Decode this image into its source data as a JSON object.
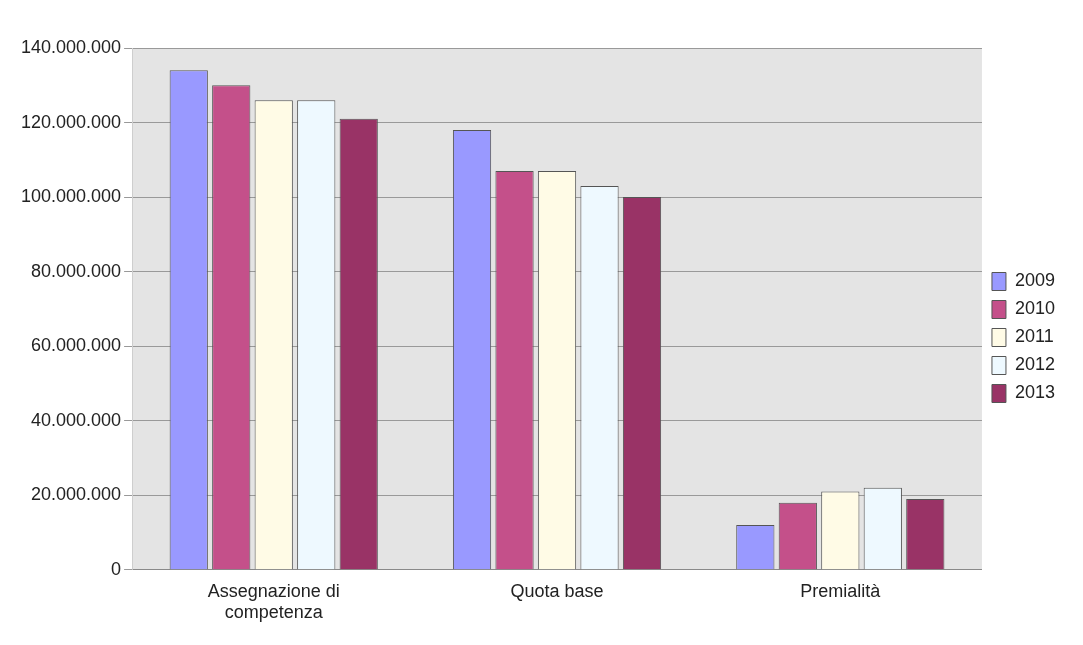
{
  "chart_data": {
    "type": "bar",
    "categories": [
      "Assegnazione di competenza",
      "Quota base",
      "Premialità"
    ],
    "series": [
      {
        "name": "2009",
        "color": "#9999ff",
        "values": [
          134000000,
          118000000,
          12000000
        ]
      },
      {
        "name": "2010",
        "color": "#c4508a",
        "values": [
          130000000,
          107000000,
          18000000
        ]
      },
      {
        "name": "2011",
        "color": "#fffbe6",
        "values": [
          126000000,
          107000000,
          21000000
        ]
      },
      {
        "name": "2012",
        "color": "#eef9ff",
        "values": [
          126000000,
          103000000,
          22000000
        ]
      },
      {
        "name": "2013",
        "color": "#993366",
        "values": [
          121000000,
          100000000,
          19000000
        ]
      }
    ],
    "ylim": [
      0,
      140000000
    ],
    "yticks": [
      {
        "value": 0,
        "label": "0"
      },
      {
        "value": 20000000,
        "label": "20.000.000"
      },
      {
        "value": 40000000,
        "label": "40.000.000"
      },
      {
        "value": 60000000,
        "label": "60.000.000"
      },
      {
        "value": 80000000,
        "label": "80.000.000"
      },
      {
        "value": 100000000,
        "label": "100.000.000"
      },
      {
        "value": 120000000,
        "label": "120.000.000"
      },
      {
        "value": 140000000,
        "label": "140.000.000"
      }
    ],
    "grid": "y",
    "legend": "right"
  }
}
